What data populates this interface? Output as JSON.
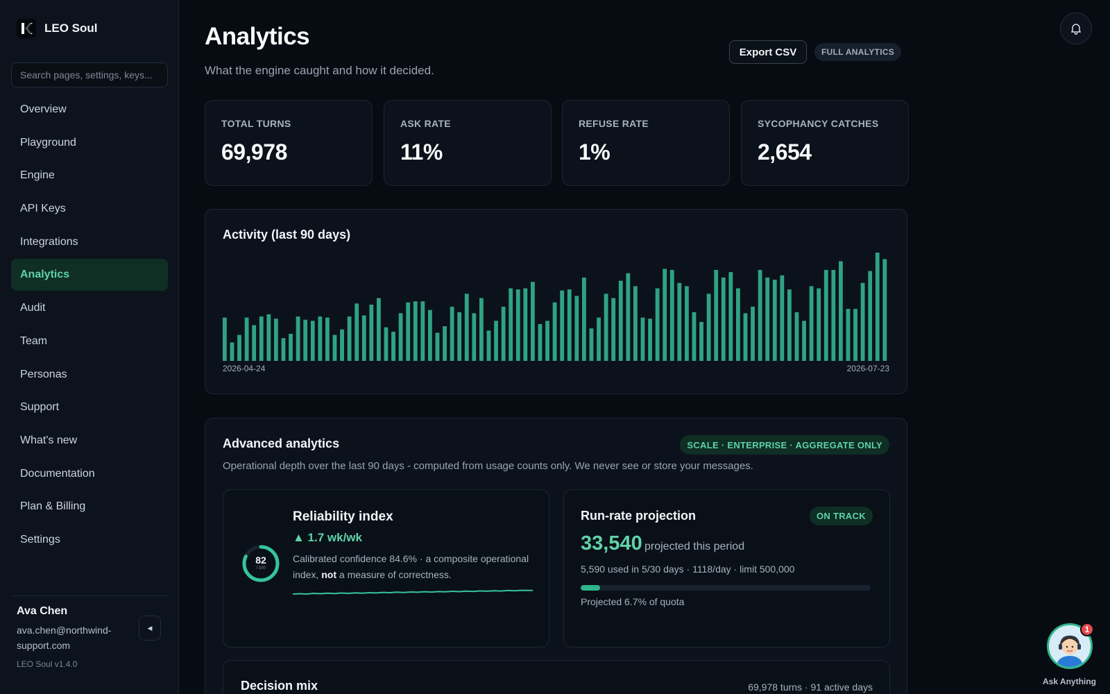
{
  "app": {
    "name": "LEO Soul",
    "version": "LEO Soul v1.4.0"
  },
  "search": {
    "placeholder": "Search pages, settings, keys..."
  },
  "nav": [
    {
      "label": "Overview"
    },
    {
      "label": "Playground"
    },
    {
      "label": "Engine"
    },
    {
      "label": "API Keys"
    },
    {
      "label": "Integrations"
    },
    {
      "label": "Analytics",
      "active": true
    },
    {
      "label": "Audit"
    },
    {
      "label": "Team"
    },
    {
      "label": "Personas"
    },
    {
      "label": "Support"
    },
    {
      "label": "What's new"
    },
    {
      "label": "Documentation"
    },
    {
      "label": "Plan & Billing"
    },
    {
      "label": "Settings"
    }
  ],
  "user": {
    "name": "Ava Chen",
    "email": "ava.chen@northwind-support.com"
  },
  "header": {
    "title": "Analytics",
    "subtitle": "What the engine caught and how it decided.",
    "export_label": "Export CSV",
    "badge": "FULL ANALYTICS"
  },
  "stats": [
    {
      "label": "TOTAL TURNS",
      "value": "69,978"
    },
    {
      "label": "ASK RATE",
      "value": "11%"
    },
    {
      "label": "REFUSE RATE",
      "value": "1%"
    },
    {
      "label": "SYCOPHANCY CATCHES",
      "value": "2,654"
    }
  ],
  "activity": {
    "title": "Activity (last 90 days)",
    "start_date": "2026-04-24",
    "end_date": "2026-07-23"
  },
  "chart_data": {
    "type": "bar",
    "title": "Activity (last 90 days)",
    "x_range": [
      "2026-04-24",
      "2026-07-23"
    ],
    "ylim": [
      0,
      100
    ],
    "grid": false,
    "color": "#2fa383",
    "values": [
      40,
      17,
      24,
      40,
      33,
      41,
      43,
      39,
      21,
      25,
      41,
      38,
      37,
      41,
      40,
      24,
      29,
      41,
      53,
      42,
      52,
      58,
      31,
      27,
      44,
      54,
      55,
      55,
      47,
      26,
      32,
      50,
      45,
      62,
      44,
      58,
      28,
      37,
      50,
      67,
      66,
      67,
      73,
      34,
      37,
      54,
      65,
      66,
      60,
      77,
      30,
      40,
      62,
      58,
      74,
      81,
      69,
      40,
      39,
      67,
      85,
      84,
      72,
      69,
      45,
      36,
      62,
      84,
      77,
      82,
      67,
      44,
      50,
      84,
      77,
      75,
      79,
      66,
      45,
      37,
      69,
      67,
      84,
      84,
      92,
      48,
      48,
      72,
      83,
      100,
      94
    ]
  },
  "advanced": {
    "title": "Advanced analytics",
    "badge": "SCALE · ENTERPRISE · AGGREGATE ONLY",
    "description": "Operational depth over the last 90 days - computed from usage counts only. We never see or store your messages.",
    "reliability": {
      "title": "Reliability index",
      "delta": "▲ 1.7 wk/wk",
      "gauge_value": "82",
      "gauge_fraction": 0.82,
      "gauge_sub": "/ 100",
      "desc_prefix": "Calibrated confidence 84.6% · a composite operational index, ",
      "desc_bold": "not",
      "desc_suffix": " a measure of correctness."
    },
    "runrate": {
      "title": "Run-rate projection",
      "badge": "ON TRACK",
      "value": "33,540",
      "suffix": "projected this period",
      "meta": "5,590 used in 5/30 days · 1118/day · limit 500,000",
      "progress_fraction": 0.067,
      "progress_label": "Projected 6.7% of quota"
    },
    "decision": {
      "title": "Decision mix",
      "meta": "69,978 turns · 91 active days"
    }
  },
  "assistant": {
    "label": "Ask Anything",
    "badge": "1"
  },
  "colors": {
    "accent": "#5fd3a8",
    "bar": "#2fa383",
    "active_bg": "#0f2e24"
  }
}
